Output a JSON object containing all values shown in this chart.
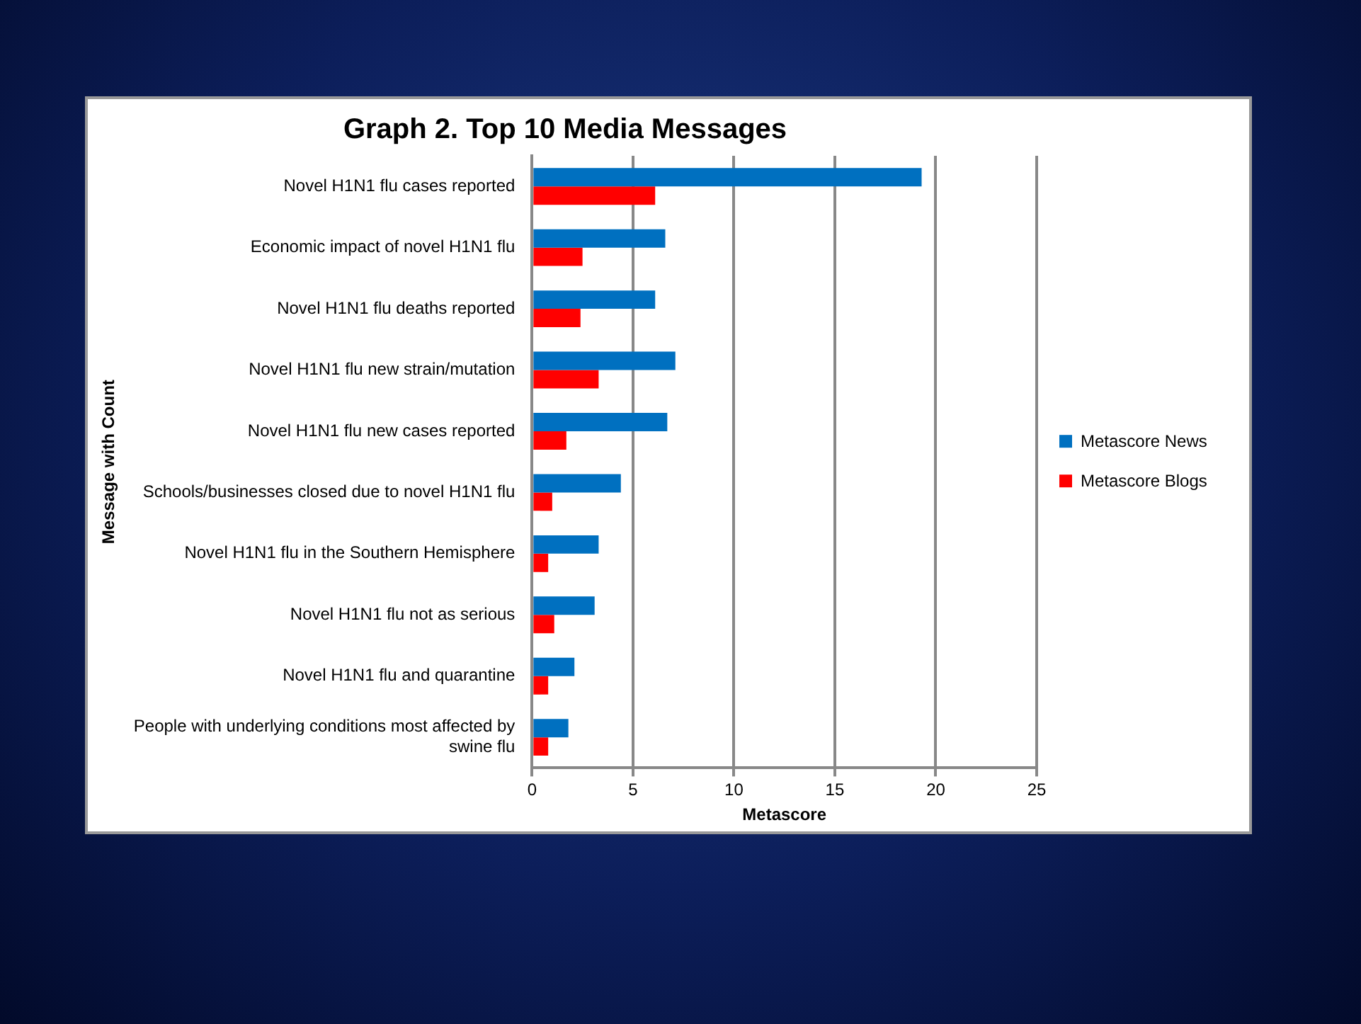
{
  "chart_data": {
    "type": "bar",
    "orientation": "horizontal",
    "title": "Graph 2. Top 10 Media Messages",
    "xlabel": "Metascore",
    "ylabel": "Message with Count",
    "categories": [
      "Novel H1N1 flu cases reported",
      "Economic impact of novel H1N1 flu",
      "Novel H1N1 flu deaths reported",
      "Novel H1N1 flu new strain/mutation",
      "Novel H1N1 flu new cases reported",
      "Schools/businesses closed due to novel H1N1 flu",
      "Novel H1N1 flu in the Southern Hemisphere",
      "Novel H1N1 flu not as serious",
      "Novel H1N1 flu and quarantine",
      "People with underlying conditions most affected by swine flu"
    ],
    "series": [
      {
        "name": "Metascore News",
        "color": "#0070c0",
        "values": [
          19.3,
          6.6,
          6.1,
          7.1,
          6.7,
          4.4,
          3.3,
          3.1,
          2.1,
          1.8
        ]
      },
      {
        "name": "Metascore Blogs",
        "color": "#ff0000",
        "values": [
          6.1,
          2.5,
          2.4,
          3.3,
          1.7,
          1.0,
          0.8,
          1.1,
          0.8,
          0.8
        ]
      }
    ],
    "xlim": [
      0,
      25
    ],
    "xticks": [
      0,
      5,
      10,
      15,
      20,
      25
    ],
    "grid": "x",
    "legend": "right"
  }
}
